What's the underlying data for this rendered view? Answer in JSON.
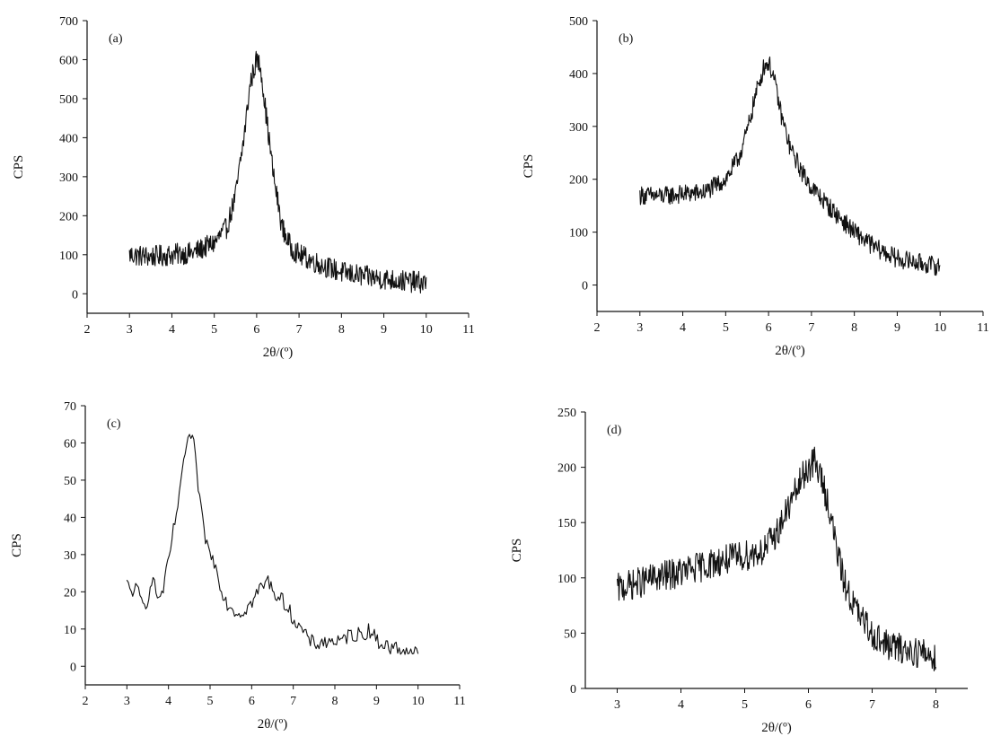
{
  "figure": {
    "panels": [
      "(a)",
      "(b)",
      "(c)",
      "(d)"
    ]
  },
  "chart_data": [
    {
      "type": "line",
      "panel_label": "(a)",
      "xlabel": "2θ/(º)",
      "ylabel": "CPS",
      "xlim": [
        2,
        11
      ],
      "ylim": [
        -50,
        700
      ],
      "xticks": [
        2,
        3,
        4,
        5,
        6,
        7,
        8,
        9,
        10,
        11
      ],
      "yticks": [
        0,
        100,
        200,
        300,
        400,
        500,
        600,
        700
      ],
      "noise": 28,
      "x": [
        3.0,
        3.5,
        4.0,
        4.5,
        5.0,
        5.3,
        5.5,
        5.7,
        5.85,
        6.0,
        6.1,
        6.2,
        6.4,
        6.6,
        6.8,
        7.0,
        7.5,
        8.0,
        8.5,
        9.0,
        9.5,
        10.0
      ],
      "y": [
        100,
        95,
        100,
        105,
        130,
        170,
        250,
        400,
        540,
        600,
        580,
        480,
        300,
        170,
        120,
        100,
        75,
        55,
        45,
        38,
        32,
        28
      ],
      "line_color": "#111111"
    },
    {
      "type": "line",
      "panel_label": "(b)",
      "xlabel": "2θ/(º)",
      "ylabel": "CPS",
      "xlim": [
        2,
        11
      ],
      "ylim": [
        -50,
        500
      ],
      "xticks": [
        2,
        3,
        4,
        5,
        6,
        7,
        8,
        9,
        10,
        11
      ],
      "yticks": [
        0,
        100,
        200,
        300,
        400,
        500
      ],
      "noise": 18,
      "x": [
        3.0,
        3.5,
        4.0,
        4.5,
        5.0,
        5.3,
        5.5,
        5.7,
        5.9,
        6.0,
        6.1,
        6.3,
        6.5,
        6.8,
        7.0,
        7.5,
        8.0,
        8.5,
        9.0,
        9.5,
        10.0
      ],
      "y": [
        170,
        168,
        172,
        175,
        200,
        240,
        290,
        360,
        415,
        420,
        400,
        320,
        260,
        210,
        185,
        140,
        100,
        70,
        50,
        42,
        35
      ],
      "line_color": "#111111"
    },
    {
      "type": "line",
      "panel_label": "(c)",
      "xlabel": "2θ/(º)",
      "ylabel": "CPS",
      "xlim": [
        2,
        11
      ],
      "ylim": [
        -5,
        70
      ],
      "xticks": [
        2,
        3,
        4,
        5,
        6,
        7,
        8,
        9,
        10,
        11
      ],
      "yticks": [
        0,
        10,
        20,
        30,
        40,
        50,
        60,
        70
      ],
      "noise": 2,
      "x": [
        3.0,
        3.1,
        3.2,
        3.3,
        3.4,
        3.5,
        3.6,
        3.7,
        3.8,
        3.9,
        4.0,
        4.1,
        4.2,
        4.3,
        4.4,
        4.5,
        4.6,
        4.7,
        4.8,
        4.9,
        5.0,
        5.1,
        5.2,
        5.3,
        5.4,
        5.5,
        5.6,
        5.7,
        5.8,
        5.9,
        6.0,
        6.1,
        6.2,
        6.3,
        6.4,
        6.5,
        6.6,
        6.7,
        6.8,
        6.9,
        7.0,
        7.1,
        7.2,
        7.3,
        7.4,
        7.5,
        7.6,
        7.7,
        7.8,
        7.9,
        8.0,
        8.1,
        8.2,
        8.3,
        8.4,
        8.5,
        8.6,
        8.7,
        8.8,
        8.9,
        9.0,
        9.1,
        9.2,
        9.3,
        9.4,
        9.5,
        9.6,
        9.7,
        9.8,
        9.9,
        10.0
      ],
      "y": [
        22,
        20,
        21,
        19,
        16,
        18,
        24,
        20,
        18,
        22,
        28,
        35,
        42,
        48,
        58,
        62,
        60,
        50,
        40,
        34,
        30,
        28,
        24,
        20,
        17,
        16,
        15,
        14,
        15,
        16,
        17,
        19,
        21,
        22,
        23,
        21,
        19,
        18,
        17,
        15,
        13,
        11,
        10,
        8,
        7,
        6,
        6,
        7,
        6,
        7,
        7,
        6,
        7,
        8,
        9,
        8,
        9,
        8,
        10,
        9,
        7,
        6,
        6,
        5,
        5,
        5,
        4,
        5,
        4,
        4,
        3
      ],
      "line_color": "#111111"
    },
    {
      "type": "line",
      "panel_label": "(d)",
      "xlabel": "2θ/(º)",
      "ylabel": "CPS",
      "xlim": [
        2.5,
        8.5
      ],
      "ylim": [
        0,
        250
      ],
      "xticks": [
        3,
        4,
        5,
        6,
        7,
        8
      ],
      "yticks": [
        0,
        50,
        100,
        150,
        200,
        250
      ],
      "noise": 14,
      "x": [
        3.0,
        3.3,
        3.6,
        4.0,
        4.3,
        4.6,
        5.0,
        5.3,
        5.5,
        5.7,
        5.9,
        6.0,
        6.1,
        6.2,
        6.3,
        6.4,
        6.5,
        6.6,
        6.8,
        7.0,
        7.2,
        7.5,
        7.8,
        8.0
      ],
      "y": [
        90,
        95,
        100,
        105,
        110,
        115,
        120,
        125,
        140,
        165,
        190,
        200,
        205,
        190,
        170,
        140,
        110,
        90,
        65,
        50,
        40,
        35,
        32,
        28
      ],
      "line_color": "#111111"
    }
  ]
}
